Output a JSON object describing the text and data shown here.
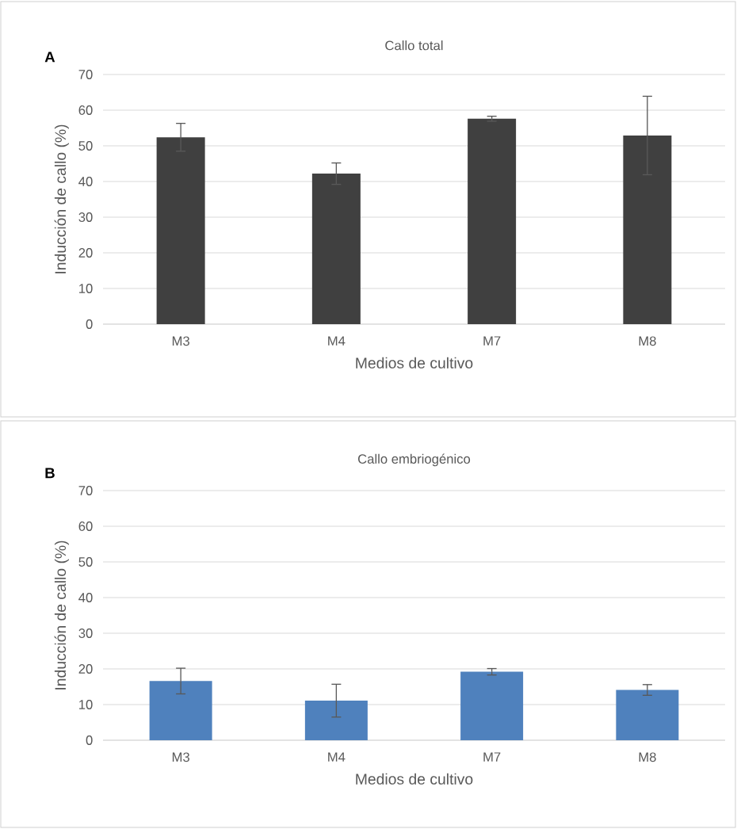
{
  "chart_data": [
    {
      "type": "bar",
      "title": "Callo total",
      "xlabel": "Medios de cultivo",
      "ylabel": "Inducción de callo (%)",
      "categories": [
        "M3",
        "M4",
        "M7",
        "M8"
      ],
      "values": [
        52.4,
        42.2,
        57.6,
        52.9
      ],
      "errors": [
        3.9,
        3.0,
        0.7,
        11.0
      ],
      "color": "#404040",
      "ylim": [
        0,
        70
      ],
      "yticks": [
        0,
        10,
        20,
        30,
        40,
        50,
        60,
        70
      ],
      "grid": "y",
      "annotations": [
        "A"
      ]
    },
    {
      "type": "bar",
      "title": "Callo embriogénico",
      "xlabel": "Medios de cultivo",
      "ylabel": "Inducción de callo (%)",
      "categories": [
        "M3",
        "M4",
        "M7",
        "M8"
      ],
      "values": [
        16.6,
        11.1,
        19.2,
        14.1
      ],
      "errors": [
        3.6,
        4.6,
        0.9,
        1.5
      ],
      "color": "#4f81bd",
      "ylim": [
        0,
        70
      ],
      "yticks": [
        0,
        10,
        20,
        30,
        40,
        50,
        60,
        70
      ],
      "grid": "y",
      "annotations": [
        "B"
      ]
    }
  ]
}
